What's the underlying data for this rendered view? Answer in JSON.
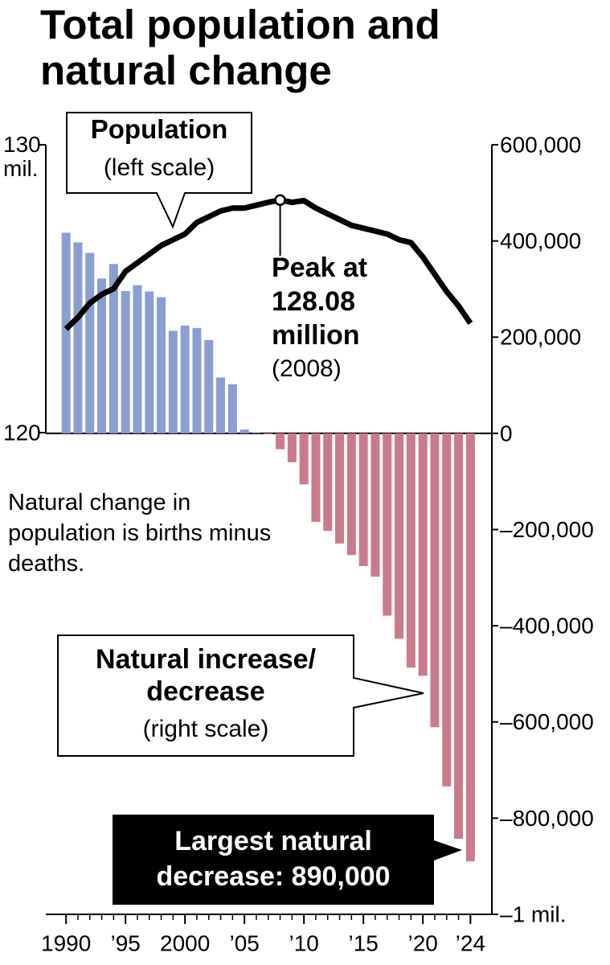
{
  "chart_data": {
    "type": "bar",
    "title": "Total population and natural change",
    "x": [
      1990,
      1991,
      1992,
      1993,
      1994,
      1995,
      1996,
      1997,
      1998,
      1999,
      2000,
      2001,
      2002,
      2003,
      2004,
      2005,
      2006,
      2007,
      2008,
      2009,
      2010,
      2011,
      2012,
      2013,
      2014,
      2015,
      2016,
      2017,
      2018,
      2019,
      2020,
      2021,
      2022,
      2023,
      2024
    ],
    "xlim": [
      1988.3,
      2025.8
    ],
    "xticks": [
      {
        "value": 1990,
        "label": "1990"
      },
      {
        "value": 1995,
        "label": "’95"
      },
      {
        "value": 2000,
        "label": "2000"
      },
      {
        "value": 2005,
        "label": "’05"
      },
      {
        "value": 2010,
        "label": "’10"
      },
      {
        "value": 2015,
        "label": "’15"
      },
      {
        "value": 2020,
        "label": "’20"
      },
      {
        "value": 2024,
        "label": "’24"
      }
    ],
    "ylim": [
      120,
      130
    ],
    "yticks": [
      120,
      {
        "value": 130,
        "label": "130 mil."
      }
    ],
    "y2lim": [
      -1000000,
      600000
    ],
    "y2ticks": [
      {
        "value": 600000,
        "label": "600,000"
      },
      {
        "value": 400000,
        "label": "400,000"
      },
      {
        "value": 200000,
        "label": "200,000"
      },
      0,
      {
        "value": -200000,
        "label": "–200,000"
      },
      {
        "value": -400000,
        "label": "–400,000"
      },
      {
        "value": -600000,
        "label": "–600,000"
      },
      {
        "value": -800000,
        "label": "–800,000"
      },
      {
        "value": -1000000,
        "label": "–1 mil."
      }
    ],
    "series": [
      {
        "name": "Population",
        "type": "line",
        "axis": "y",
        "color": "#000000",
        "scale_note": "(left scale)",
        "values": [
          123.6,
          124.0,
          124.5,
          124.8,
          125.0,
          125.6,
          125.9,
          126.2,
          126.5,
          126.7,
          126.9,
          127.3,
          127.5,
          127.7,
          127.8,
          127.8,
          127.9,
          128.0,
          128.08,
          128.0,
          128.06,
          127.8,
          127.6,
          127.4,
          127.2,
          127.1,
          127.0,
          126.9,
          126.7,
          126.6,
          126.1,
          125.5,
          124.9,
          124.4,
          123.8
        ]
      },
      {
        "name": "Natural increase/ decrease",
        "type": "bar",
        "axis": "y2",
        "color": "#8a9fcf",
        "negative_color": "#c97b8c",
        "scale_note": "(right scale)",
        "values": [
          417000,
          397000,
          375000,
          322000,
          352000,
          296000,
          308000,
          295000,
          283000,
          213000,
          224000,
          219000,
          194000,
          116000,
          102000,
          8000,
          1000,
          -2000,
          -33000,
          -60000,
          -106000,
          -184000,
          -203000,
          -229000,
          -253000,
          -276000,
          -298000,
          -379000,
          -427000,
          -487000,
          -504000,
          -611000,
          -734000,
          -843000,
          -890000
        ]
      }
    ],
    "annotations": {
      "peak": {
        "text": "Peak at 128.08 million",
        "sub": "(2008)"
      },
      "note": "Natural change in population is births minus deaths.",
      "largest": "Largest natural decrease: 890,000"
    }
  }
}
